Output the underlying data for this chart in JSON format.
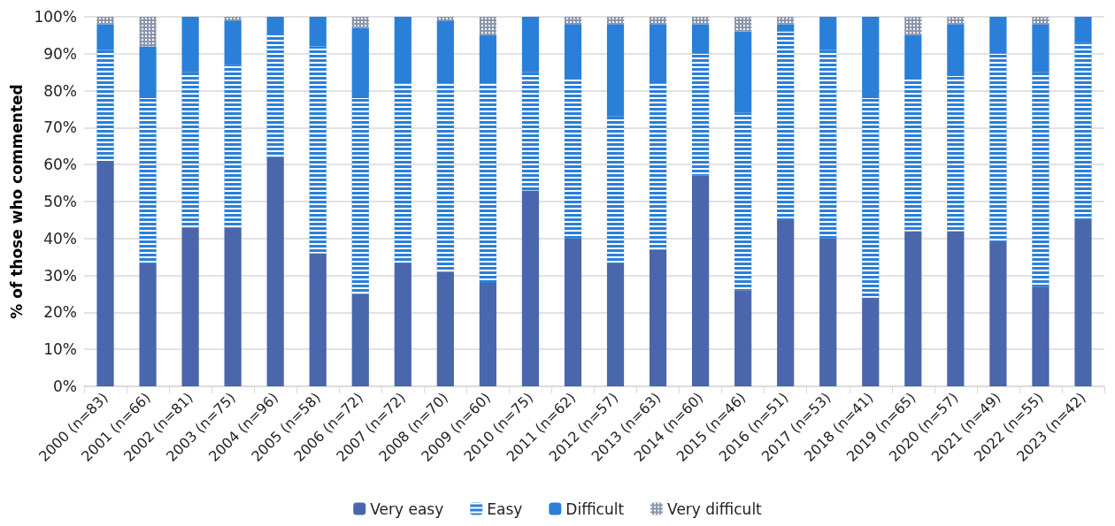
{
  "chart_data": {
    "type": "bar",
    "stacked": true,
    "ylabel": "% of those who commented",
    "categories": [
      "2000 (n=83)",
      "2001 (n=66)",
      "2002 (n=81)",
      "2003 (n=75)",
      "2004 (n=96)",
      "2005 (n=58)",
      "2006 (n=72)",
      "2007 (n=72)",
      "2008 (n=70)",
      "2009 (n=60)",
      "2010 (n=75)",
      "2011 (n=62)",
      "2012 (n=57)",
      "2013 (n=63)",
      "2014 (n=60)",
      "2015 (n=46)",
      "2016 (n=51)",
      "2017 (n=53)",
      "2018 (n=41)",
      "2019 (n=65)",
      "2020 (n=57)",
      "2021 (n=49)",
      "2022 (n=55)",
      "2023 (n=42)"
    ],
    "series": [
      {
        "name": "Very easy",
        "color": "#4a66ac",
        "values": [
          61,
          33,
          43,
          43,
          62,
          36,
          25,
          33,
          31,
          28,
          53,
          40,
          33,
          37,
          57,
          26,
          45,
          40,
          24,
          42,
          42,
          39,
          27,
          45
        ]
      },
      {
        "name": "Easy",
        "color": "#2a7fd8",
        "values": [
          30,
          45,
          42,
          44,
          33,
          56,
          53,
          49,
          51,
          54,
          32,
          43,
          40,
          45,
          33,
          48,
          51,
          51,
          54,
          41,
          42,
          51,
          58,
          48
        ]
      },
      {
        "name": "Difficult",
        "color": "#2a7fd8",
        "values": [
          7,
          14,
          15,
          12,
          5,
          8,
          19,
          18,
          17,
          13,
          15,
          15,
          25,
          16,
          8,
          22,
          2,
          9,
          22,
          12,
          14,
          10,
          13,
          7
        ]
      },
      {
        "name": "Very difficult",
        "color": "#8a96ad",
        "values": [
          2,
          8,
          0,
          1,
          0,
          0,
          3,
          0,
          1,
          5,
          0,
          2,
          2,
          2,
          2,
          4,
          2,
          0,
          0,
          5,
          2,
          0,
          2,
          0
        ]
      }
    ],
    "ylim": [
      0,
      100
    ],
    "yticks": [
      {
        "value": 0,
        "label": "0%"
      },
      {
        "value": 10,
        "label": "10%"
      },
      {
        "value": 20,
        "label": "20%"
      },
      {
        "value": 30,
        "label": "30%"
      },
      {
        "value": 40,
        "label": "40%"
      },
      {
        "value": 50,
        "label": "50%"
      },
      {
        "value": 60,
        "label": "60%"
      },
      {
        "value": 70,
        "label": "70%"
      },
      {
        "value": 80,
        "label": "80%"
      },
      {
        "value": 90,
        "label": "90%"
      },
      {
        "value": 100,
        "label": "100%"
      }
    ],
    "grid": "y",
    "legend": "bottom"
  }
}
